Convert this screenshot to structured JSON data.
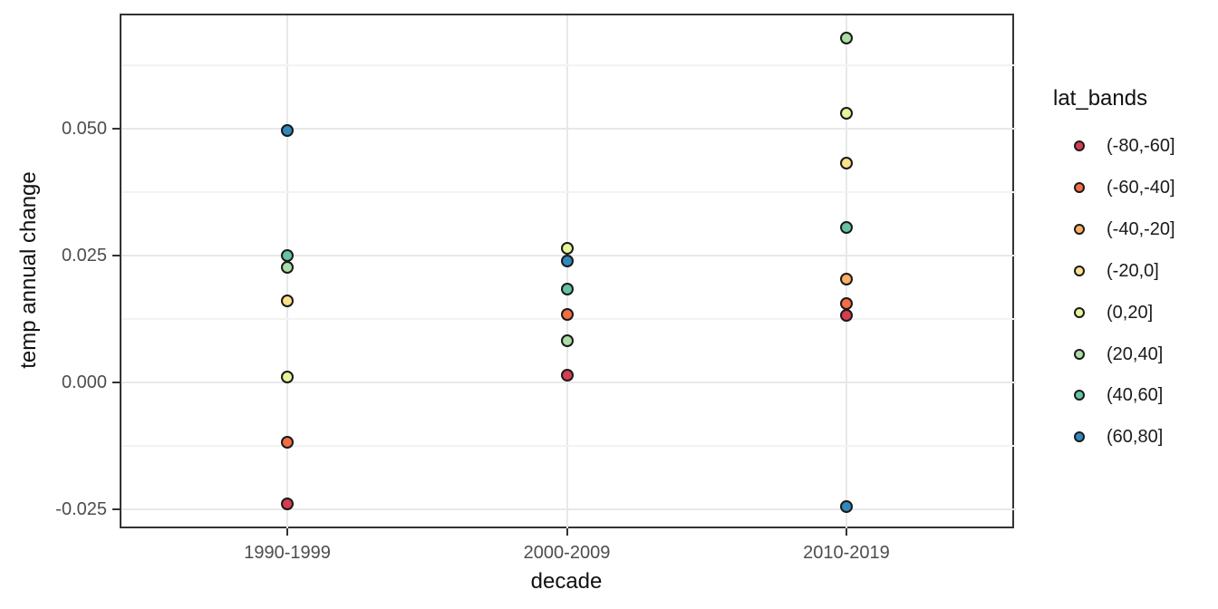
{
  "figure": {
    "background": "#ffffff",
    "panel_border_color": "#333333",
    "gridline_major_color": "#e8e8e8",
    "gridline_minor_color": "#f3f3f3",
    "tick_color": "#333333",
    "tick_label_color": "#4d4d4d",
    "axis_title_color": "#111111",
    "point_outline_color": "#1a1a1a"
  },
  "chart_data": {
    "type": "scatter",
    "title": "",
    "xlabel": "decade",
    "ylabel": "temp annual change",
    "categories": [
      "1990-1999",
      "2000-2009",
      "2010-2019"
    ],
    "y_axis": {
      "ticks": [
        -0.025,
        0,
        0.025,
        0.05
      ],
      "tick_labels": [
        "-0.025",
        "0.000",
        "0.025",
        "0.050"
      ],
      "minor_gridlines": [
        -0.0125,
        0.0125,
        0.0375,
        0.0625
      ],
      "range": [
        -0.0286,
        0.0727
      ],
      "grid": true
    },
    "legend": {
      "title": "lat_bands",
      "position": "right",
      "entries": [
        {
          "label": "(-80,-60]",
          "color": "#d53e4f"
        },
        {
          "label": "(-60,-40]",
          "color": "#f46d43"
        },
        {
          "label": "(-40,-20]",
          "color": "#fdae61"
        },
        {
          "label": "(-20,0]",
          "color": "#fee08b"
        },
        {
          "label": "(0,20]",
          "color": "#e6f598"
        },
        {
          "label": "(20,40]",
          "color": "#abdda4"
        },
        {
          "label": "(40,60]",
          "color": "#66c2a5"
        },
        {
          "label": "(60,80]",
          "color": "#3288bd"
        }
      ]
    },
    "series": [
      {
        "name": "(-80,-60]",
        "color": "#d53e4f",
        "points": [
          {
            "x": "1990-1999",
            "y": -0.024
          },
          {
            "x": "2000-2009",
            "y": 0.0013
          },
          {
            "x": "2010-2019",
            "y": 0.0131
          }
        ]
      },
      {
        "name": "(-60,-40]",
        "color": "#f46d43",
        "points": [
          {
            "x": "1990-1999",
            "y": -0.0119
          },
          {
            "x": "2000-2009",
            "y": 0.0134
          },
          {
            "x": "2010-2019",
            "y": 0.0154
          }
        ]
      },
      {
        "name": "(-40,-20]",
        "color": "#fdae61",
        "points": [
          {
            "x": "2010-2019",
            "y": 0.0203
          }
        ]
      },
      {
        "name": "(-20,0]",
        "color": "#fee08b",
        "points": [
          {
            "x": "1990-1999",
            "y": 0.0161
          },
          {
            "x": "2010-2019",
            "y": 0.0431
          }
        ]
      },
      {
        "name": "(0,20]",
        "color": "#e6f598",
        "points": [
          {
            "x": "1990-1999",
            "y": 0.001
          },
          {
            "x": "2000-2009",
            "y": 0.0264
          },
          {
            "x": "2010-2019",
            "y": 0.053
          }
        ]
      },
      {
        "name": "(20,40]",
        "color": "#abdda4",
        "points": [
          {
            "x": "1990-1999",
            "y": 0.0226
          },
          {
            "x": "2000-2009",
            "y": 0.0081
          },
          {
            "x": "2010-2019",
            "y": 0.0678
          }
        ]
      },
      {
        "name": "(40,60]",
        "color": "#66c2a5",
        "points": [
          {
            "x": "1990-1999",
            "y": 0.0249
          },
          {
            "x": "2000-2009",
            "y": 0.0184
          },
          {
            "x": "2010-2019",
            "y": 0.0304
          }
        ]
      },
      {
        "name": "(60,80]",
        "color": "#3288bd",
        "points": [
          {
            "x": "1990-1999",
            "y": 0.0496
          },
          {
            "x": "2000-2009",
            "y": 0.0238
          },
          {
            "x": "2010-2019",
            "y": -0.0245
          }
        ]
      }
    ]
  }
}
